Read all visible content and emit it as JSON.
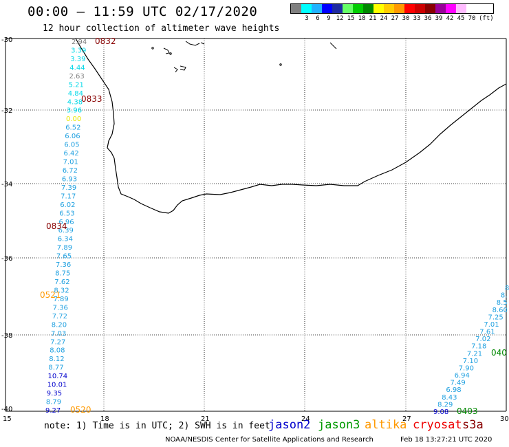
{
  "header": {
    "title": "00:00 – 11:59 UTC 02/17/2020",
    "subtitle": "12 hour collection of altimeter wave heights"
  },
  "color_scale": {
    "unit": "(ft)",
    "boxes": [
      {
        "color": "#7f7f7f",
        "label": ""
      },
      {
        "color": "#00ffff",
        "label": "3"
      },
      {
        "color": "#20b2ff",
        "label": "6"
      },
      {
        "color": "#0000ff",
        "label": "9"
      },
      {
        "color": "#1e2aa0",
        "label": "12"
      },
      {
        "color": "#66ff66",
        "label": "15"
      },
      {
        "color": "#00cc00",
        "label": "18"
      },
      {
        "color": "#008800",
        "label": "21"
      },
      {
        "color": "#ffff00",
        "label": "24"
      },
      {
        "color": "#ffcc00",
        "label": "27"
      },
      {
        "color": "#ff9900",
        "label": "30"
      },
      {
        "color": "#ff0000",
        "label": "33"
      },
      {
        "color": "#cc0000",
        "label": "36"
      },
      {
        "color": "#880000",
        "label": "39"
      },
      {
        "color": "#990099",
        "label": "42"
      },
      {
        "color": "#ff00ff",
        "label": "45"
      },
      {
        "color": "#ffbbff",
        "label": "70"
      }
    ]
  },
  "axes": {
    "lon_labels": [
      "15",
      "18",
      "21",
      "24",
      "27",
      "30"
    ],
    "lat_labels": [
      "-30",
      "-32",
      "-34",
      "-36",
      "-38",
      "-40"
    ]
  },
  "track_west": {
    "readings": [
      {
        "value": "2.94",
        "color": "#7f7f7f"
      },
      {
        "value": "3.39",
        "color": "#00d8e8"
      },
      {
        "value": "3.39",
        "color": "#00d8e8"
      },
      {
        "value": "4.44",
        "color": "#00d8e8"
      },
      {
        "value": "2.63",
        "color": "#7f7f7f"
      },
      {
        "value": "5.21",
        "color": "#00d8e8"
      },
      {
        "value": "4.84",
        "color": "#00d8e8"
      },
      {
        "value": "4.38",
        "color": "#00d8e8"
      },
      {
        "value": "3.96",
        "color": "#00d8e8"
      },
      {
        "value": "0.00",
        "color": "#e8e800"
      },
      {
        "value": "6.52",
        "color": "#1fa0e0"
      },
      {
        "value": "6.06",
        "color": "#1fa0e0"
      },
      {
        "value": "6.05",
        "color": "#1fa0e0"
      },
      {
        "value": "6.42",
        "color": "#1fa0e0"
      },
      {
        "value": "7.01",
        "color": "#1fa0e0"
      },
      {
        "value": "6.72",
        "color": "#1fa0e0"
      },
      {
        "value": "6.93",
        "color": "#1fa0e0"
      },
      {
        "value": "7.39",
        "color": "#1fa0e0"
      },
      {
        "value": "7.17",
        "color": "#1fa0e0"
      },
      {
        "value": "6.02",
        "color": "#1fa0e0"
      },
      {
        "value": "6.53",
        "color": "#1fa0e0"
      },
      {
        "value": "6.96",
        "color": "#1fa0e0"
      },
      {
        "value": "6.39",
        "color": "#1fa0e0"
      },
      {
        "value": "6.34",
        "color": "#1fa0e0"
      },
      {
        "value": "7.89",
        "color": "#1fa0e0"
      },
      {
        "value": "7.65",
        "color": "#1fa0e0"
      },
      {
        "value": "7.36",
        "color": "#1fa0e0"
      },
      {
        "value": "8.75",
        "color": "#1fa0e0"
      },
      {
        "value": "7.62",
        "color": "#1fa0e0"
      },
      {
        "value": "8.32",
        "color": "#1fa0e0"
      },
      {
        "value": "7.89",
        "color": "#1fa0e0"
      },
      {
        "value": "7.36",
        "color": "#1fa0e0"
      },
      {
        "value": "7.72",
        "color": "#1fa0e0"
      },
      {
        "value": "8.20",
        "color": "#1fa0e0"
      },
      {
        "value": "7.03",
        "color": "#1fa0e0"
      },
      {
        "value": "7.27",
        "color": "#1fa0e0"
      },
      {
        "value": "8.08",
        "color": "#1fa0e0"
      },
      {
        "value": "8.12",
        "color": "#1fa0e0"
      },
      {
        "value": "8.77",
        "color": "#1fa0e0"
      },
      {
        "value": "10.74",
        "color": "#0000cc"
      },
      {
        "value": "10.01",
        "color": "#0000cc"
      },
      {
        "value": "9.35",
        "color": "#0000cc"
      },
      {
        "value": "8.79",
        "color": "#1fa0e0"
      },
      {
        "value": "9.27",
        "color": "#0000cc"
      }
    ]
  },
  "track_east": {
    "readings": [
      {
        "value": "8",
        "color": "#1fa0e0"
      },
      {
        "value": "8.",
        "color": "#1fa0e0"
      },
      {
        "value": "8.5",
        "color": "#1fa0e0"
      },
      {
        "value": "8.60",
        "color": "#1fa0e0"
      },
      {
        "value": "7.25",
        "color": "#1fa0e0"
      },
      {
        "value": "7.01",
        "color": "#1fa0e0"
      },
      {
        "value": "7.61",
        "color": "#1fa0e0"
      },
      {
        "value": "7.02",
        "color": "#1fa0e0"
      },
      {
        "value": "7.18",
        "color": "#1fa0e0"
      },
      {
        "value": "7.21",
        "color": "#1fa0e0"
      },
      {
        "value": "7.10",
        "color": "#1fa0e0"
      },
      {
        "value": "7.90",
        "color": "#1fa0e0"
      },
      {
        "value": "6.94",
        "color": "#1fa0e0"
      },
      {
        "value": "7.49",
        "color": "#1fa0e0"
      },
      {
        "value": "6.98",
        "color": "#1fa0e0"
      },
      {
        "value": "8.43",
        "color": "#1fa0e0"
      },
      {
        "value": "8.29",
        "color": "#1fa0e0"
      },
      {
        "value": "9.08",
        "color": "#0000cc"
      }
    ]
  },
  "time_stamps": [
    {
      "text": "0832",
      "color": "#880000"
    },
    {
      "text": "0833",
      "color": "#880000"
    },
    {
      "text": "0834",
      "color": "#880000"
    },
    {
      "text": "0521",
      "color": "#ff9900"
    },
    {
      "text": "0520",
      "color": "#ff9900"
    },
    {
      "text": "0403",
      "color": "#008800"
    },
    {
      "text": "040",
      "color": "#008800"
    }
  ],
  "footer": {
    "note": "note:  1) Time is in UTC; 2) SWH is in feet",
    "credit": "NOAA/NESDIS Center for Satellite Applications and Research",
    "generated": "Feb 18 13:27:21 UTC 2020",
    "legend": [
      {
        "name": "jason2",
        "color": "#0000cc"
      },
      {
        "name": "jason3",
        "color": "#009900"
      },
      {
        "name": "altika",
        "color": "#ff9900"
      },
      {
        "name": "cryosat",
        "color": "#ee0000"
      },
      {
        "name": "s3a",
        "color": "#880000"
      }
    ]
  }
}
